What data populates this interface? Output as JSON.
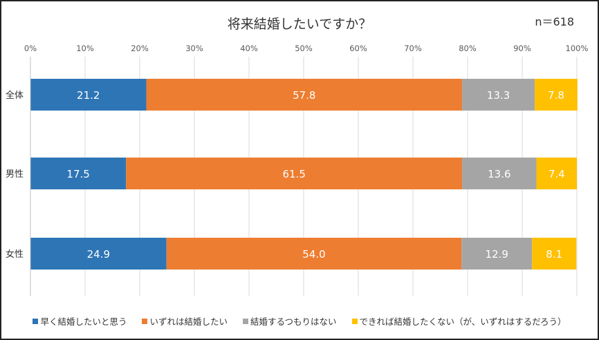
{
  "chart_data": {
    "type": "bar",
    "orientation": "horizontal",
    "stacked": true,
    "title": "将来結婚したいですか？",
    "sample_note": "n＝618",
    "xlim": [
      0,
      100
    ],
    "ticks": [
      "0%",
      "10%",
      "20%",
      "30%",
      "40%",
      "50%",
      "60%",
      "70%",
      "80%",
      "90%",
      "100%"
    ],
    "grid": true,
    "legend_position": "bottom",
    "categories": [
      "全体",
      "男性",
      "女性"
    ],
    "series": [
      {
        "name": "早く結婚したいと思う",
        "color": "#2E75B6",
        "values": [
          21.2,
          17.5,
          24.9
        ],
        "labels": [
          "21.2",
          "17.5",
          "24.9"
        ]
      },
      {
        "name": "いずれは結婚したい",
        "color": "#ED7D31",
        "values": [
          57.8,
          61.5,
          54.0
        ],
        "labels": [
          "57.8",
          "61.5",
          "54.0"
        ]
      },
      {
        "name": "結婚するつもりはない",
        "color": "#A5A5A5",
        "values": [
          13.3,
          13.6,
          12.9
        ],
        "labels": [
          "13.3",
          "13.6",
          "12.9"
        ]
      },
      {
        "name": "できれば結婚したくない（が、いずれはするだろう）",
        "color": "#FFC000",
        "values": [
          7.8,
          7.4,
          8.1
        ],
        "labels": [
          "7.8",
          "7.4",
          "8.1"
        ]
      }
    ]
  }
}
